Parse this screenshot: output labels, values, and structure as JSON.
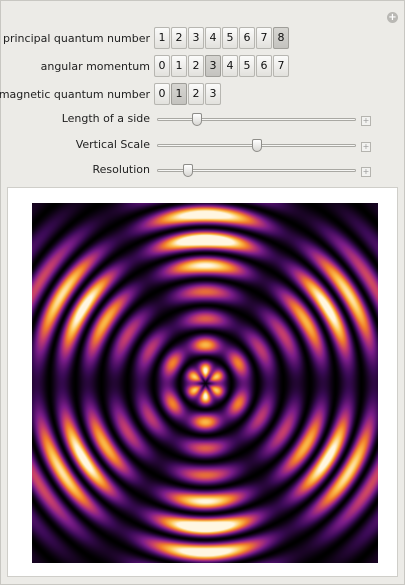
{
  "controls": {
    "principal": {
      "label": "principal quantum number",
      "options": [
        "1",
        "2",
        "3",
        "4",
        "5",
        "6",
        "7",
        "8"
      ],
      "selected": "8"
    },
    "angular": {
      "label": "angular momentum",
      "options": [
        "0",
        "1",
        "2",
        "3",
        "4",
        "5",
        "6",
        "7"
      ],
      "selected": "3"
    },
    "magnetic": {
      "label": "magnetic quantum number",
      "options": [
        "0",
        "1",
        "2",
        "3"
      ],
      "selected": "1"
    },
    "side_length": {
      "label": "Length of a side",
      "value": 0.2
    },
    "vertical_scale": {
      "label": "Vertical Scale",
      "value": 0.5
    },
    "resolution": {
      "label": "Resolution",
      "value": 0.15
    }
  },
  "plot": {
    "colormap": [
      "#000000",
      "#3a0a55",
      "#7a1c88",
      "#c23b6e",
      "#f07a2a",
      "#fbc04a",
      "#fff6e0"
    ],
    "icon": "orbital-density-plot"
  }
}
